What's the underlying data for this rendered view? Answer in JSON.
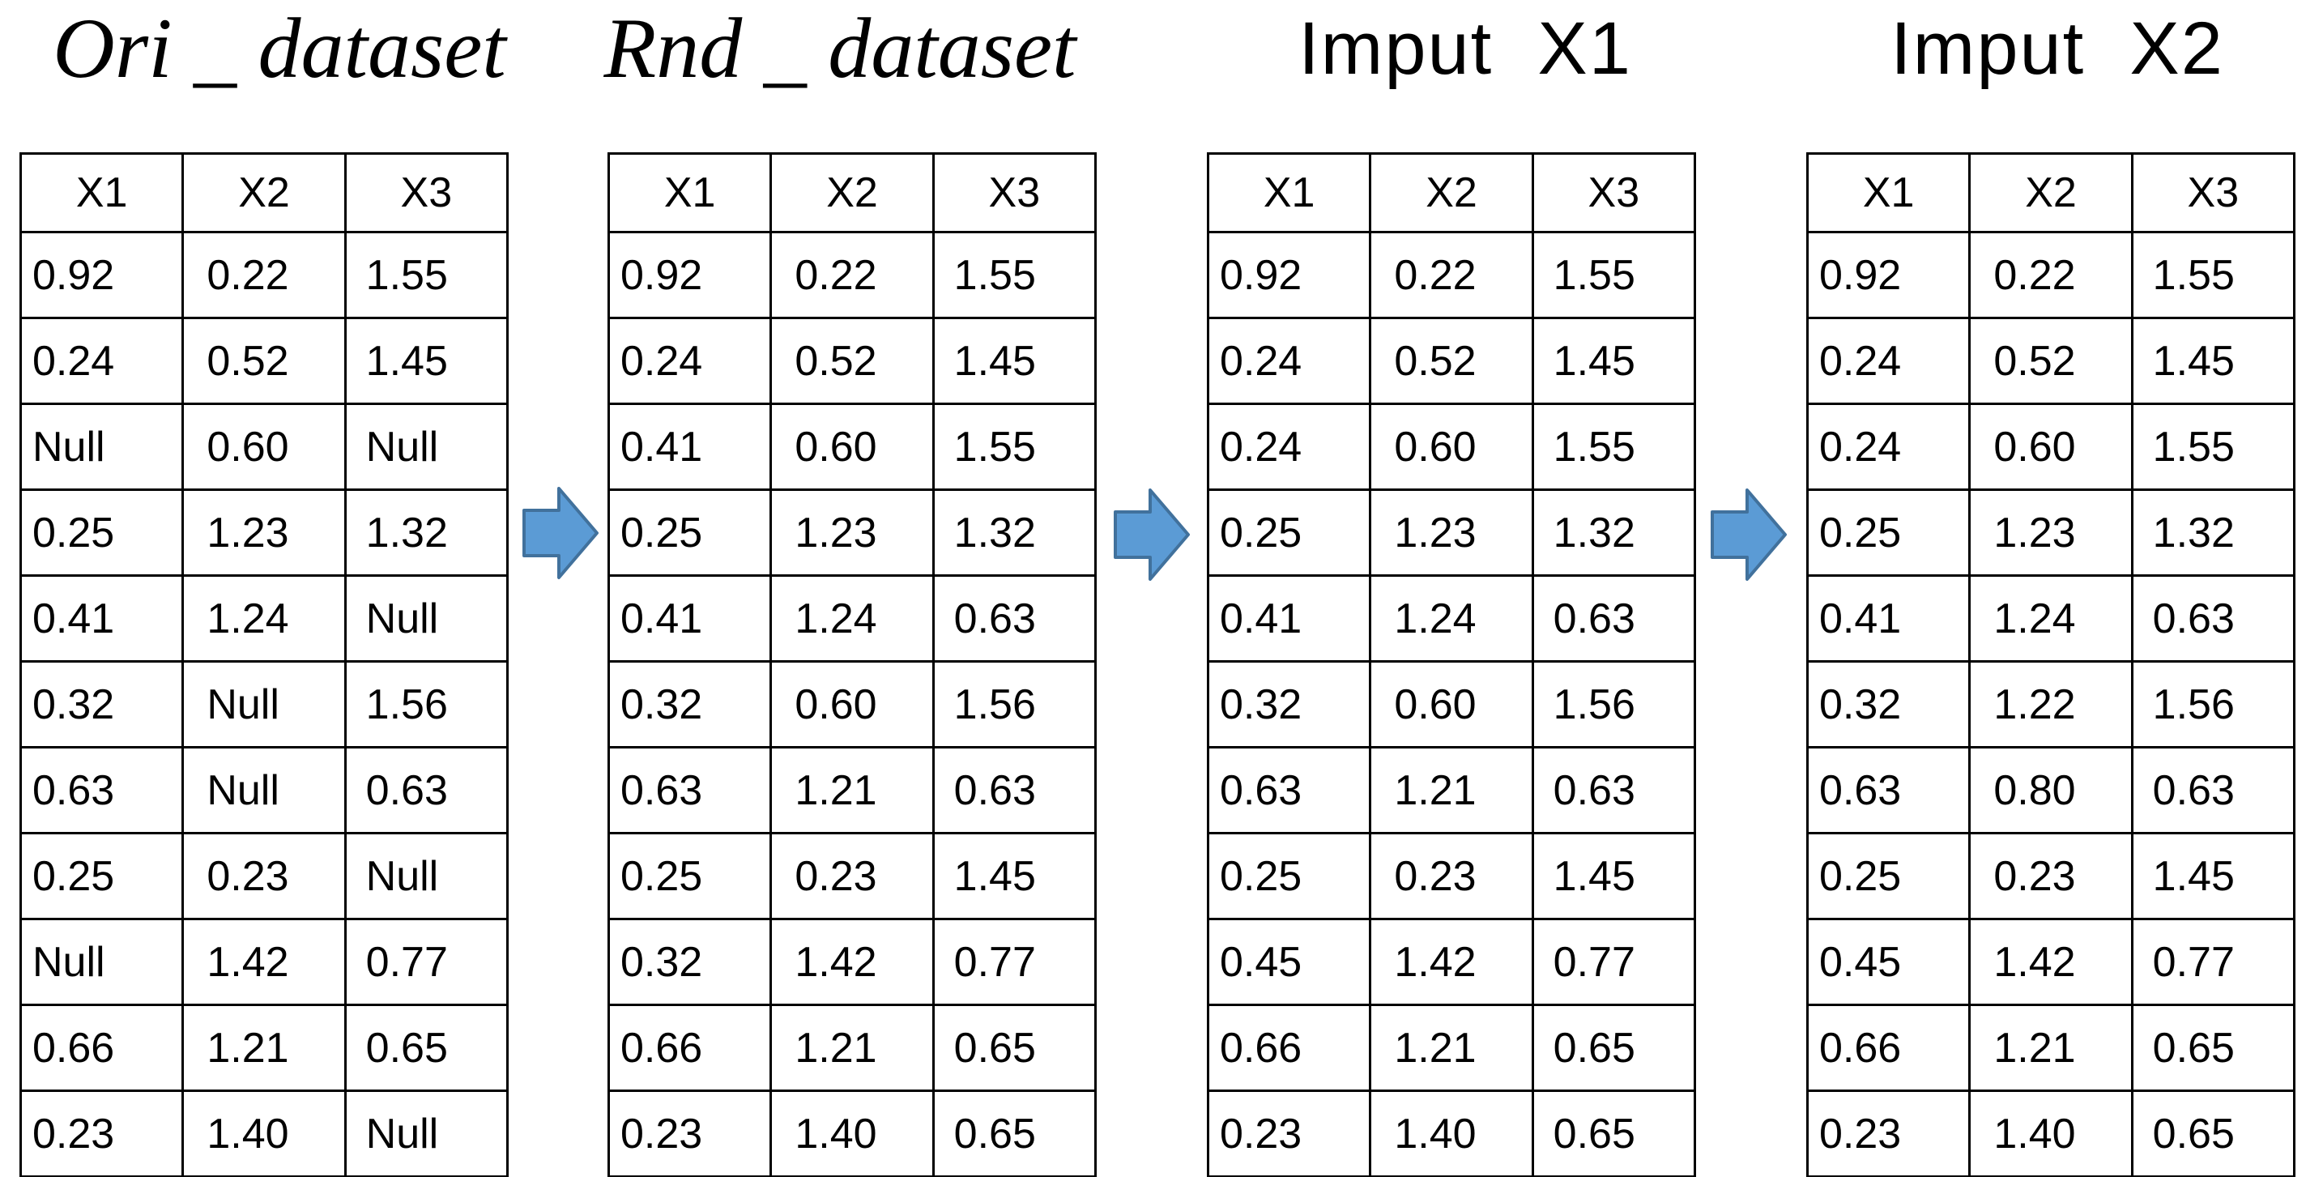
{
  "figure": {
    "description_labels": [],
    "colors": {
      "orange": "#FFC000",
      "red": "#FF0000",
      "arrow_fill": "#5B9BD5",
      "arrow_border": "#41719C",
      "grid_border": "#000000",
      "background": "#FFFFFF",
      "text": "#000000"
    }
  },
  "arrows": [
    {
      "name": "right-arrow-icon"
    },
    {
      "name": "right-arrow-icon"
    },
    {
      "name": "right-arrow-icon"
    }
  ],
  "tables": [
    {
      "title": "Ori _ dataset",
      "columns": [
        "X1",
        "X2",
        "X3"
      ],
      "rows": [
        [
          {
            "v": "0.92",
            "h": "none"
          },
          {
            "v": "0.22",
            "h": "none"
          },
          {
            "v": "1.55",
            "h": "none"
          }
        ],
        [
          {
            "v": "0.24",
            "h": "none"
          },
          {
            "v": "0.52",
            "h": "none"
          },
          {
            "v": "1.45",
            "h": "none"
          }
        ],
        [
          {
            "v": "Null",
            "h": "orange"
          },
          {
            "v": "0.60",
            "h": "none"
          },
          {
            "v": "Null",
            "h": "orange"
          }
        ],
        [
          {
            "v": "0.25",
            "h": "none"
          },
          {
            "v": "1.23",
            "h": "none"
          },
          {
            "v": "1.32",
            "h": "none"
          }
        ],
        [
          {
            "v": "0.41",
            "h": "none"
          },
          {
            "v": "1.24",
            "h": "none"
          },
          {
            "v": "Null",
            "h": "orange"
          }
        ],
        [
          {
            "v": "0.32",
            "h": "none"
          },
          {
            "v": "Null",
            "h": "orange"
          },
          {
            "v": "1.56",
            "h": "none"
          }
        ],
        [
          {
            "v": "0.63",
            "h": "none"
          },
          {
            "v": "Null",
            "h": "orange"
          },
          {
            "v": "0.63",
            "h": "none"
          }
        ],
        [
          {
            "v": "0.25",
            "h": "none"
          },
          {
            "v": "0.23",
            "h": "none"
          },
          {
            "v": "Null",
            "h": "orange"
          }
        ],
        [
          {
            "v": "Null",
            "h": "orange"
          },
          {
            "v": "1.42",
            "h": "none"
          },
          {
            "v": "0.77",
            "h": "none"
          }
        ],
        [
          {
            "v": "0.66",
            "h": "none"
          },
          {
            "v": "1.21",
            "h": "none"
          },
          {
            "v": "0.65",
            "h": "none"
          }
        ],
        [
          {
            "v": "0.23",
            "h": "none"
          },
          {
            "v": "1.40",
            "h": "none"
          },
          {
            "v": "Null",
            "h": "orange"
          }
        ]
      ]
    },
    {
      "title": "Rnd _ dataset",
      "columns": [
        "X1",
        "X2",
        "X3"
      ],
      "rows": [
        [
          {
            "v": "0.92",
            "h": "none"
          },
          {
            "v": "0.22",
            "h": "none"
          },
          {
            "v": "1.55",
            "h": "none"
          }
        ],
        [
          {
            "v": "0.24",
            "h": "none"
          },
          {
            "v": "0.52",
            "h": "none"
          },
          {
            "v": "1.45",
            "h": "none"
          }
        ],
        [
          {
            "v": "0.41",
            "h": "orange"
          },
          {
            "v": "0.60",
            "h": "none"
          },
          {
            "v": "1.55",
            "h": "orange"
          }
        ],
        [
          {
            "v": "0.25",
            "h": "none"
          },
          {
            "v": "1.23",
            "h": "none"
          },
          {
            "v": "1.32",
            "h": "none"
          }
        ],
        [
          {
            "v": "0.41",
            "h": "none"
          },
          {
            "v": "1.24",
            "h": "none"
          },
          {
            "v": "0.63",
            "h": "orange"
          }
        ],
        [
          {
            "v": "0.32",
            "h": "none"
          },
          {
            "v": "0.60",
            "h": "orange"
          },
          {
            "v": "1.56",
            "h": "none"
          }
        ],
        [
          {
            "v": "0.63",
            "h": "none"
          },
          {
            "v": "1.21",
            "h": "orange"
          },
          {
            "v": "0.63",
            "h": "none"
          }
        ],
        [
          {
            "v": "0.25",
            "h": "none"
          },
          {
            "v": "0.23",
            "h": "none"
          },
          {
            "v": "1.45",
            "h": "orange"
          }
        ],
        [
          {
            "v": "0.32",
            "h": "orange"
          },
          {
            "v": "1.42",
            "h": "none"
          },
          {
            "v": "0.77",
            "h": "none"
          }
        ],
        [
          {
            "v": "0.66",
            "h": "none"
          },
          {
            "v": "1.21",
            "h": "none"
          },
          {
            "v": "0.65",
            "h": "none"
          }
        ],
        [
          {
            "v": "0.23",
            "h": "none"
          },
          {
            "v": "1.40",
            "h": "none"
          },
          {
            "v": "0.65",
            "h": "orange"
          }
        ]
      ]
    },
    {
      "title": "Imput  X1",
      "columns": [
        "X1",
        "X2",
        "X3"
      ],
      "rows": [
        [
          {
            "v": "0.92",
            "h": "none"
          },
          {
            "v": "0.22",
            "h": "none"
          },
          {
            "v": "1.55",
            "h": "none"
          }
        ],
        [
          {
            "v": "0.24",
            "h": "none"
          },
          {
            "v": "0.52",
            "h": "none"
          },
          {
            "v": "1.45",
            "h": "none"
          }
        ],
        [
          {
            "v": "0.24",
            "h": "red"
          },
          {
            "v": "0.60",
            "h": "none"
          },
          {
            "v": "1.55",
            "h": "orange"
          }
        ],
        [
          {
            "v": "0.25",
            "h": "none"
          },
          {
            "v": "1.23",
            "h": "none"
          },
          {
            "v": "1.32",
            "h": "none"
          }
        ],
        [
          {
            "v": "0.41",
            "h": "none"
          },
          {
            "v": "1.24",
            "h": "none"
          },
          {
            "v": "0.63",
            "h": "orange"
          }
        ],
        [
          {
            "v": "0.32",
            "h": "none"
          },
          {
            "v": "0.60",
            "h": "orange"
          },
          {
            "v": "1.56",
            "h": "none"
          }
        ],
        [
          {
            "v": "0.63",
            "h": "none"
          },
          {
            "v": "1.21",
            "h": "orange"
          },
          {
            "v": "0.63",
            "h": "none"
          }
        ],
        [
          {
            "v": "0.25",
            "h": "none"
          },
          {
            "v": "0.23",
            "h": "none"
          },
          {
            "v": "1.45",
            "h": "orange"
          }
        ],
        [
          {
            "v": "0.45",
            "h": "red"
          },
          {
            "v": "1.42",
            "h": "none"
          },
          {
            "v": "0.77",
            "h": "none"
          }
        ],
        [
          {
            "v": "0.66",
            "h": "none"
          },
          {
            "v": "1.21",
            "h": "none"
          },
          {
            "v": "0.65",
            "h": "none"
          }
        ],
        [
          {
            "v": "0.23",
            "h": "none"
          },
          {
            "v": "1.40",
            "h": "none"
          },
          {
            "v": "0.65",
            "h": "orange"
          }
        ]
      ]
    },
    {
      "title": "Imput  X2",
      "columns": [
        "X1",
        "X2",
        "X3"
      ],
      "rows": [
        [
          {
            "v": "0.92",
            "h": "none"
          },
          {
            "v": "0.22",
            "h": "none"
          },
          {
            "v": "1.55",
            "h": "none"
          }
        ],
        [
          {
            "v": "0.24",
            "h": "none"
          },
          {
            "v": "0.52",
            "h": "none"
          },
          {
            "v": "1.45",
            "h": "none"
          }
        ],
        [
          {
            "v": "0.24",
            "h": "red"
          },
          {
            "v": "0.60",
            "h": "none"
          },
          {
            "v": "1.55",
            "h": "orange"
          }
        ],
        [
          {
            "v": "0.25",
            "h": "none"
          },
          {
            "v": "1.23",
            "h": "none"
          },
          {
            "v": "1.32",
            "h": "none"
          }
        ],
        [
          {
            "v": "0.41",
            "h": "none"
          },
          {
            "v": "1.24",
            "h": "none"
          },
          {
            "v": "0.63",
            "h": "orange"
          }
        ],
        [
          {
            "v": "0.32",
            "h": "none"
          },
          {
            "v": "1.22",
            "h": "red"
          },
          {
            "v": "1.56",
            "h": "none"
          }
        ],
        [
          {
            "v": "0.63",
            "h": "none"
          },
          {
            "v": "0.80",
            "h": "red"
          },
          {
            "v": "0.63",
            "h": "none"
          }
        ],
        [
          {
            "v": "0.25",
            "h": "none"
          },
          {
            "v": "0.23",
            "h": "none"
          },
          {
            "v": "1.45",
            "h": "orange"
          }
        ],
        [
          {
            "v": "0.45",
            "h": "red"
          },
          {
            "v": "1.42",
            "h": "none"
          },
          {
            "v": "0.77",
            "h": "none"
          }
        ],
        [
          {
            "v": "0.66",
            "h": "none"
          },
          {
            "v": "1.21",
            "h": "none"
          },
          {
            "v": "0.65",
            "h": "none"
          }
        ],
        [
          {
            "v": "0.23",
            "h": "none"
          },
          {
            "v": "1.40",
            "h": "none"
          },
          {
            "v": "0.65",
            "h": "orange"
          }
        ]
      ]
    }
  ]
}
